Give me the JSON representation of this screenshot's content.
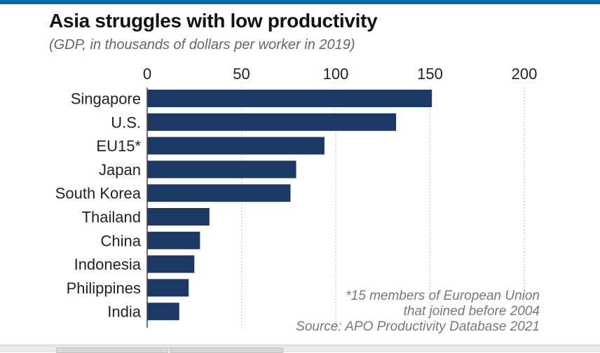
{
  "colors": {
    "accent": "#0a6aa8",
    "bar": "#1c3864",
    "grid": "#b5b5b5"
  },
  "chart_data": {
    "type": "bar",
    "orientation": "horizontal",
    "title": "Asia struggles with low productivity",
    "subtitle": "(GDP, in thousands of dollars per worker in 2019)",
    "categories": [
      "Singapore",
      "U.S.",
      "EU15*",
      "Japan",
      "South Korea",
      "Thailand",
      "China",
      "Indonesia",
      "Philippines",
      "India"
    ],
    "values": [
      151,
      132,
      94,
      79,
      76,
      33,
      28,
      25,
      22,
      17
    ],
    "xlim": [
      0,
      200
    ],
    "xticks": [
      0,
      50,
      100,
      150,
      200
    ],
    "xtick_labels": [
      "0",
      "50",
      "100",
      "150",
      "200"
    ],
    "grid": "vertical dotted",
    "xlabel": "",
    "ylabel": "",
    "notes": [
      "*15 members of European Union",
      "that joined before 2004",
      "Source: APO Productivity Database 2021"
    ]
  }
}
